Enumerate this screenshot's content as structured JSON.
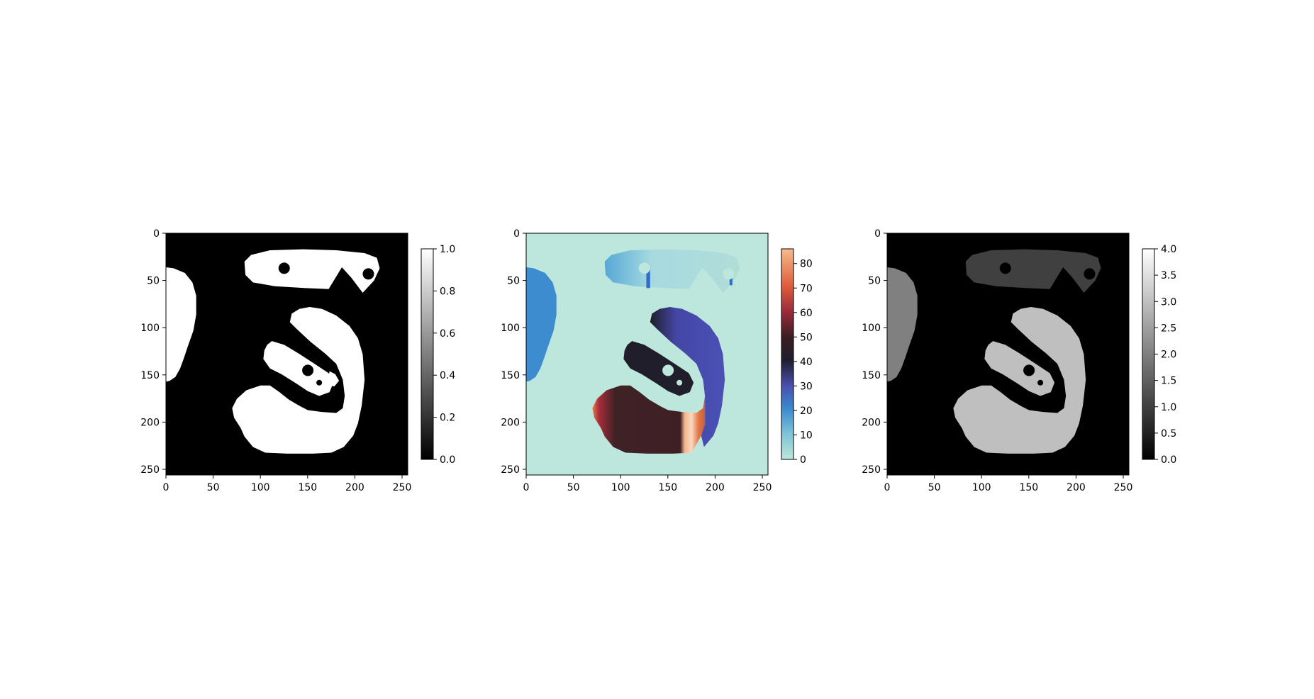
{
  "chart_data": [
    {
      "type": "heatmap",
      "colormap": "gray",
      "xlim": [
        0,
        256
      ],
      "ylim": [
        256,
        0
      ],
      "xticks": [
        "0",
        "50",
        "100",
        "150",
        "200",
        "250"
      ],
      "yticks": [
        "0",
        "50",
        "100",
        "150",
        "200",
        "250"
      ],
      "colorbar": {
        "min": 0.0,
        "max": 1.0,
        "ticks": [
          "0.0",
          "0.2",
          "0.4",
          "0.6",
          "0.8",
          "1.0"
        ]
      },
      "regions": [
        {
          "label": 1,
          "value": 1.0
        },
        {
          "label": 2,
          "value": 1.0
        },
        {
          "label": 3,
          "value": 1.0
        },
        {
          "label": 4,
          "value": 1.0
        },
        {
          "label": "background",
          "value": 0.0
        }
      ]
    },
    {
      "type": "heatmap",
      "colormap": "icefire",
      "xlim": [
        0,
        256
      ],
      "ylim": [
        256,
        0
      ],
      "xticks": [
        "0",
        "50",
        "100",
        "150",
        "200",
        "250"
      ],
      "yticks": [
        "0",
        "50",
        "100",
        "150",
        "200",
        "250"
      ],
      "colorbar": {
        "min": 0,
        "max": 86,
        "ticks": [
          "0",
          "10",
          "20",
          "30",
          "40",
          "50",
          "60",
          "70",
          "80"
        ]
      },
      "regions": [
        {
          "label": "background",
          "value": 3
        },
        {
          "label": "left-blob",
          "value": 20
        },
        {
          "label": "top-shape",
          "value_range": [
            4,
            20
          ]
        },
        {
          "label": "hook-inner",
          "value": 45
        },
        {
          "label": "hook-right-arm",
          "value": 30
        },
        {
          "label": "hook-bottom",
          "value_range": [
            50,
            86
          ]
        }
      ]
    },
    {
      "type": "heatmap",
      "colormap": "gray",
      "xlim": [
        0,
        256
      ],
      "ylim": [
        256,
        0
      ],
      "xticks": [
        "0",
        "50",
        "100",
        "150",
        "200",
        "250"
      ],
      "yticks": [
        "0",
        "50",
        "100",
        "150",
        "200",
        "250"
      ],
      "colorbar": {
        "min": 0.0,
        "max": 4.0,
        "ticks": [
          "0.0",
          "0.5",
          "1.0",
          "1.5",
          "2.0",
          "2.5",
          "3.0",
          "3.5",
          "4.0"
        ]
      },
      "regions": [
        {
          "label": "background",
          "value": 0
        },
        {
          "label": "top-shape",
          "value": 1
        },
        {
          "label": "left-blob",
          "value": 2
        },
        {
          "label": "hook",
          "value": 3
        }
      ]
    }
  ]
}
